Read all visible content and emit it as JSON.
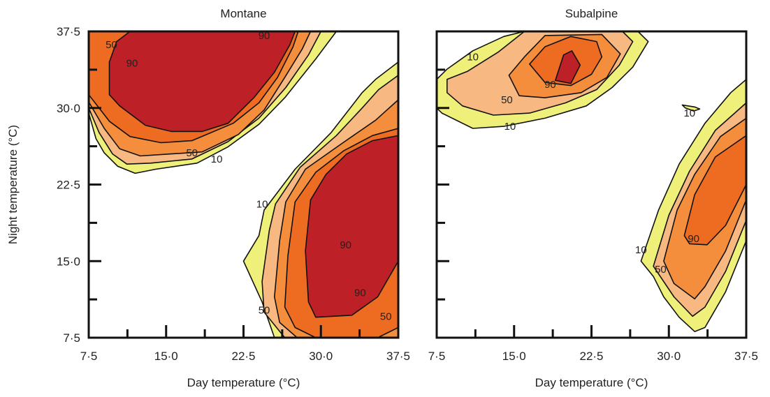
{
  "chart_data": [
    {
      "type": "contour",
      "title": "Montane",
      "xlabel": "Day temperature (°C)",
      "ylabel": "Night temperature (°C)",
      "xlim": [
        7.5,
        37.5
      ],
      "ylim": [
        7.5,
        37.5
      ],
      "xticks": [
        "7·5",
        "15·0",
        "22·5",
        "30·0",
        "37·5"
      ],
      "yticks": [
        "7·5",
        "15·0",
        "22·5",
        "30·0",
        "37·5"
      ],
      "levels": [
        10,
        50,
        90
      ],
      "level_colors": [
        "#eef07a",
        "#f7b981",
        "#f48e3c",
        "#ee6b22",
        "#bd2027"
      ],
      "contour_labels": [
        {
          "text": "50",
          "x": 9.7,
          "y": 36.2
        },
        {
          "text": "90",
          "x": 11.7,
          "y": 34.4
        },
        {
          "text": "90",
          "x": 24.5,
          "y": 37.1
        },
        {
          "text": "50",
          "x": 17.5,
          "y": 25.6
        },
        {
          "text": "10",
          "x": 19.9,
          "y": 25.0
        },
        {
          "text": "10",
          "x": 24.3,
          "y": 20.6
        },
        {
          "text": "90",
          "x": 32.4,
          "y": 16.6
        },
        {
          "text": "90",
          "x": 33.8,
          "y": 11.9
        },
        {
          "text": "50",
          "x": 24.5,
          "y": 10.2
        },
        {
          "text": "50",
          "x": 36.3,
          "y": 9.6
        }
      ]
    },
    {
      "type": "contour",
      "title": "Subalpine",
      "xlabel": "Day temperature (°C)",
      "ylabel": "",
      "xlim": [
        7.5,
        37.5
      ],
      "ylim": [
        7.5,
        37.5
      ],
      "xticks": [
        "7·5",
        "15·0",
        "22·5",
        "30·0",
        "37·5"
      ],
      "yticks": [],
      "levels": [
        10,
        50,
        90
      ],
      "level_colors": [
        "#eef07a",
        "#f7b981",
        "#f48e3c",
        "#ee6b22",
        "#bd2027"
      ],
      "contour_labels": [
        {
          "text": "10",
          "x": 11.0,
          "y": 35.0
        },
        {
          "text": "90",
          "x": 18.5,
          "y": 32.3
        },
        {
          "text": "50",
          "x": 14.3,
          "y": 30.8
        },
        {
          "text": "10",
          "x": 14.6,
          "y": 28.2
        },
        {
          "text": "10",
          "x": 32.0,
          "y": 29.5
        },
        {
          "text": "90",
          "x": 32.4,
          "y": 17.2
        },
        {
          "text": "10",
          "x": 27.3,
          "y": 16.1
        },
        {
          "text": "50",
          "x": 29.2,
          "y": 14.2
        }
      ]
    }
  ]
}
